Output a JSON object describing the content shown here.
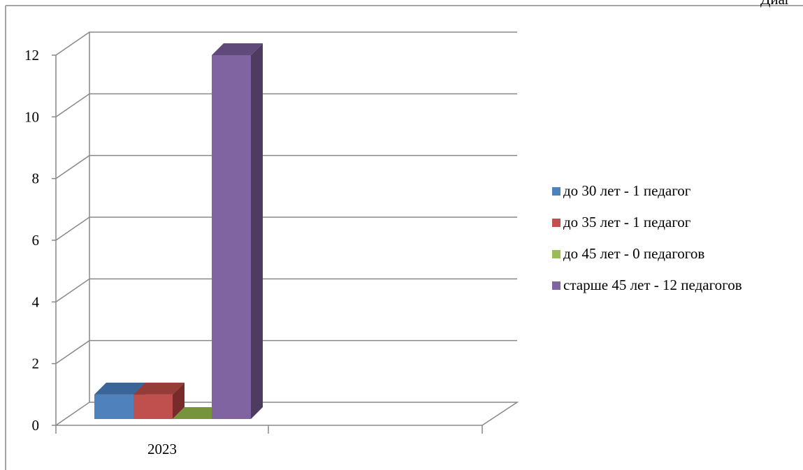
{
  "corner_text": "Диаг",
  "chart_data": {
    "type": "bar",
    "title": "",
    "xlabel": "",
    "ylabel": "",
    "categories": [
      "2023"
    ],
    "ylim": [
      0,
      12
    ],
    "yticks": [
      0,
      2,
      4,
      6,
      8,
      10,
      12
    ],
    "three_d": true,
    "grid": true,
    "legend_position": "right",
    "series": [
      {
        "name": "до 30 лет  - 1 педагог",
        "values": [
          1
        ],
        "color": "#4f81bd",
        "side_color": "#2c4d75",
        "top_color": "#3a6599"
      },
      {
        "name": "до 35 лет - 1 педагог",
        "values": [
          1
        ],
        "color": "#c0504d",
        "side_color": "#772c2a",
        "top_color": "#953c39"
      },
      {
        "name": "до 45 лет - 0 педагогов",
        "values": [
          0
        ],
        "color": "#9bbb59",
        "side_color": "#5f7530",
        "top_color": "#77933c"
      },
      {
        "name": "старше 45 лет - 12 педагогов",
        "values": [
          12
        ],
        "color": "#8064a2",
        "side_color": "#4d3b62",
        "top_color": "#5f4a7b"
      }
    ]
  }
}
